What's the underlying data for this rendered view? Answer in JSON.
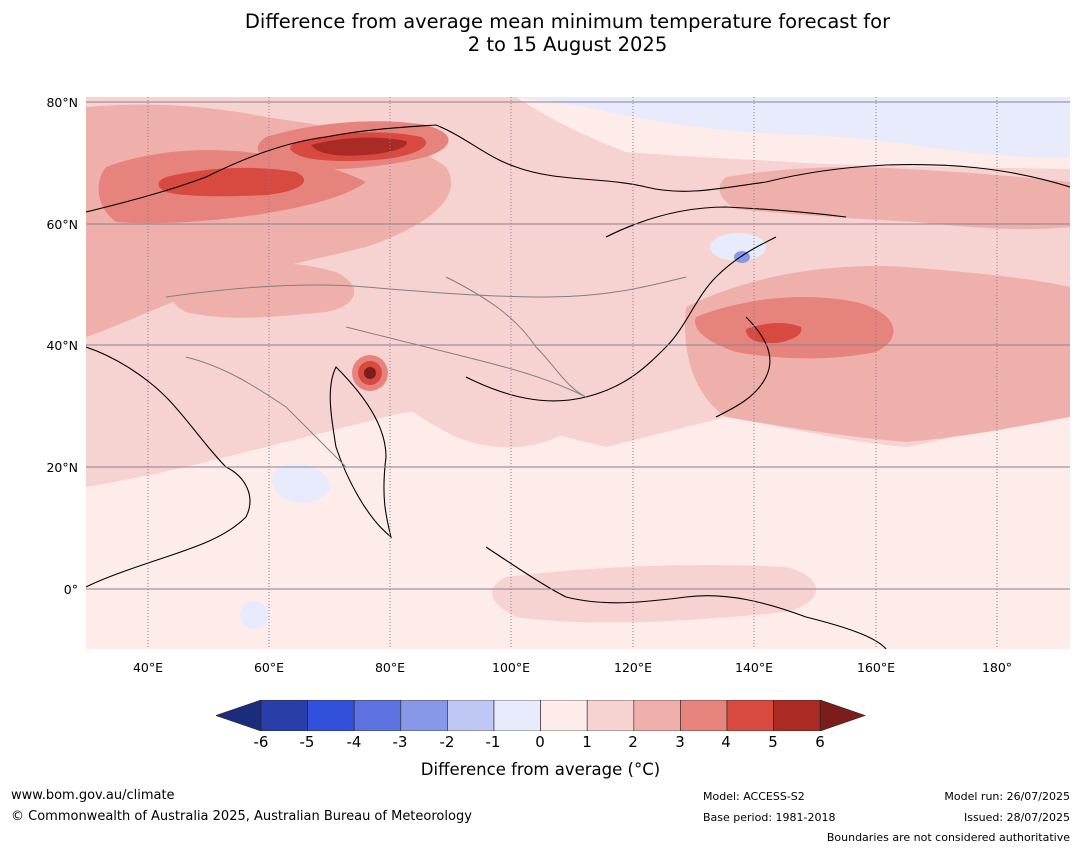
{
  "title_line1": "Difference from average mean minimum temperature forecast for",
  "title_line2": "2 to 15 August 2025",
  "lat_labels": [
    "80°N",
    "60°N",
    "40°N",
    "20°N",
    "0°"
  ],
  "lon_labels": [
    "40°E",
    "60°E",
    "80°E",
    "100°E",
    "120°E",
    "140°E",
    "160°E",
    "180°"
  ],
  "colorbar": {
    "ticks": [
      "-6",
      "-5",
      "-4",
      "-3",
      "-2",
      "-1",
      "0",
      "1",
      "2",
      "3",
      "4",
      "5",
      "6"
    ],
    "colors": [
      "#1c2c7c",
      "#2a3eaa",
      "#3150dc",
      "#5e71e0",
      "#8798e8",
      "#bfc8f4",
      "#e8ebfb",
      "#fdecea",
      "#f6d3d0",
      "#efb0ab",
      "#e6837d",
      "#d84a40",
      "#a92b24",
      "#7b1d1a"
    ],
    "label": "Difference from average (°C)"
  },
  "footer": {
    "url": "www.bom.gov.au/climate",
    "copyright": "© Commonwealth of Australia 2025, Australian Bureau of Meteorology",
    "model": "Model: ACCESS-S2",
    "base_period": "Base period: 1981-2018",
    "model_run": "Model run: 26/07/2025",
    "issued": "Issued: 28/07/2025",
    "boundaries": "Boundaries are not considered authoritative"
  }
}
